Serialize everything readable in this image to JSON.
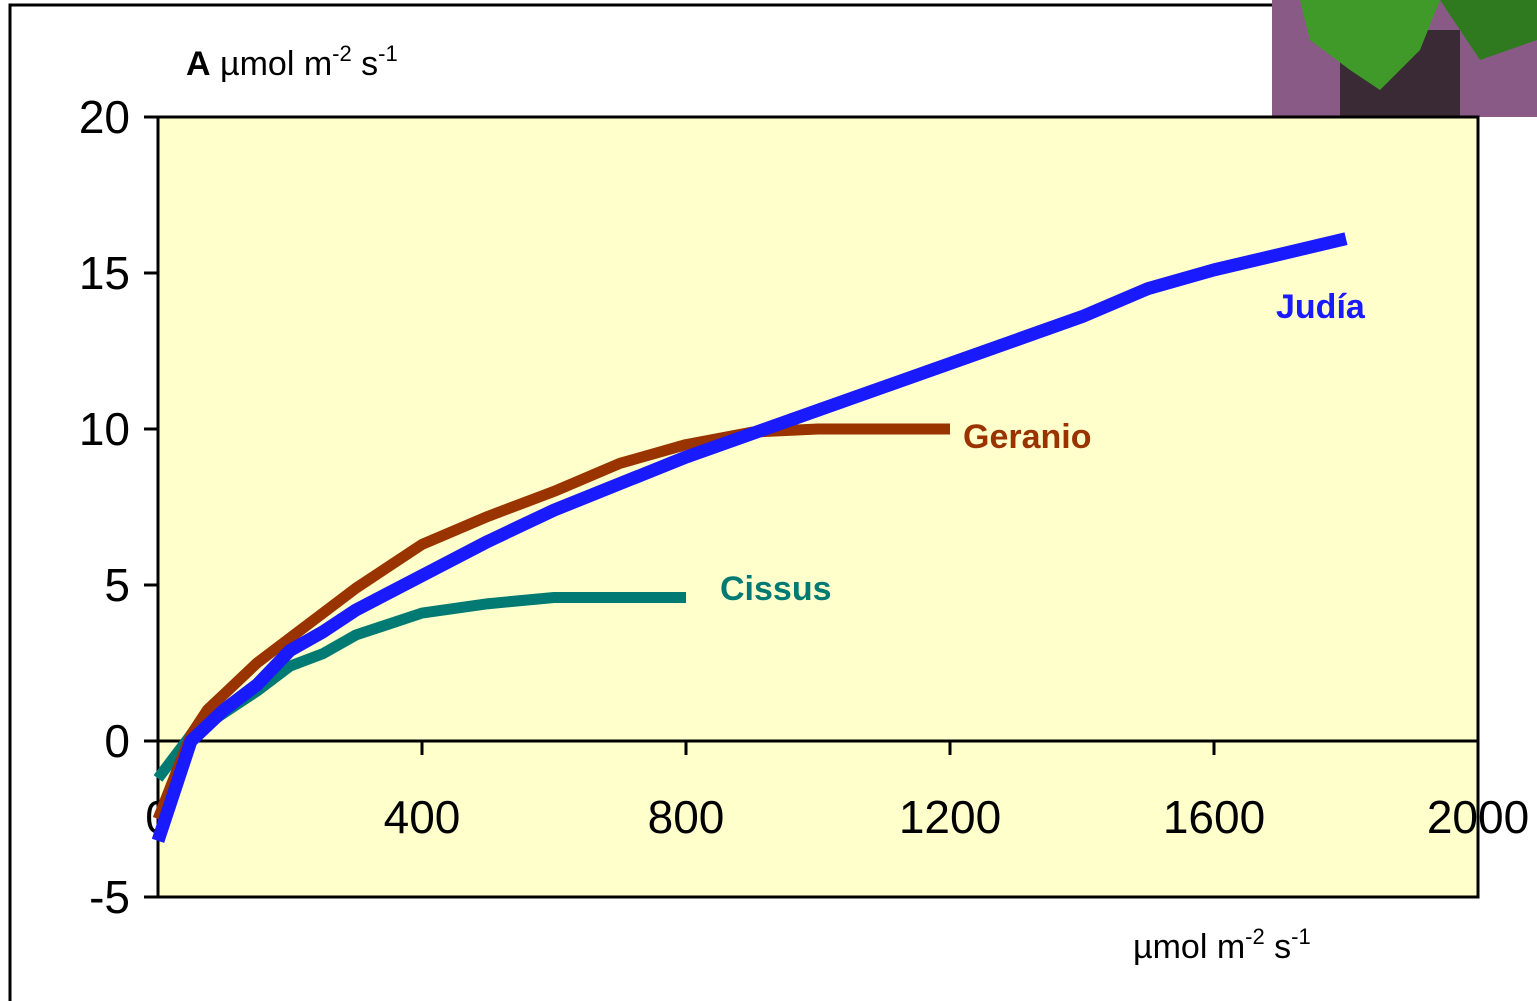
{
  "chart_data": {
    "type": "line",
    "ylabel_parts": [
      "A",
      " µmol m",
      "-2",
      " s",
      "-1"
    ],
    "xlabel_parts": [
      "µmol m",
      "-2",
      " s",
      "-1"
    ],
    "xlim": [
      0,
      2000
    ],
    "xticks": [
      0,
      400,
      800,
      1200,
      1600,
      2000
    ],
    "ylim": [
      -5,
      20
    ],
    "yticks": [
      -5,
      0,
      5,
      10,
      15,
      20
    ],
    "series": [
      {
        "name": "Cissus",
        "color": "#007a73",
        "x": [
          0,
          50,
          100,
          150,
          200,
          250,
          300,
          400,
          500,
          600,
          800
        ],
        "values": [
          -1.2,
          0.2,
          0.9,
          1.6,
          2.4,
          2.8,
          3.4,
          4.1,
          4.4,
          4.6,
          4.6
        ]
      },
      {
        "name": "Geranio",
        "color": "#993300",
        "x": [
          0,
          50,
          75,
          100,
          150,
          200,
          300,
          400,
          500,
          600,
          700,
          800,
          900,
          1000,
          1200
        ],
        "values": [
          -2.5,
          0.2,
          1.0,
          1.5,
          2.5,
          3.3,
          4.9,
          6.3,
          7.2,
          8.0,
          8.9,
          9.5,
          9.9,
          10.0,
          10.0
        ]
      },
      {
        "name": "Judía",
        "color": "#1a1aff",
        "x": [
          0,
          50,
          100,
          150,
          200,
          250,
          300,
          400,
          500,
          600,
          800,
          1000,
          1200,
          1400,
          1500,
          1600,
          1800
        ],
        "values": [
          -3.2,
          0,
          1.0,
          1.8,
          2.9,
          3.5,
          4.2,
          5.3,
          6.4,
          7.4,
          9.1,
          10.6,
          12.1,
          13.6,
          14.5,
          15.1,
          16.1
        ]
      }
    ]
  }
}
